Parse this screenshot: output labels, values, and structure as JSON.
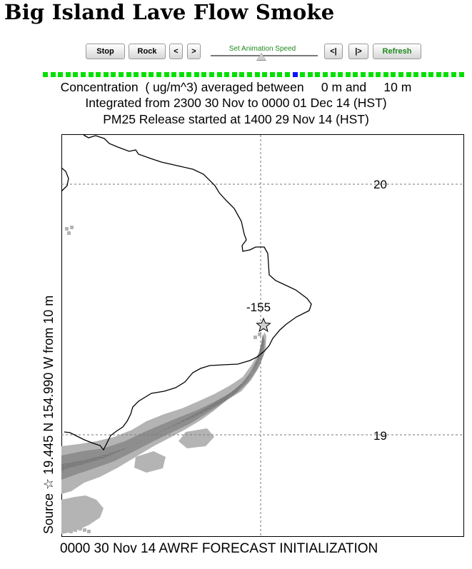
{
  "title": "Big Island Lave Flow Smoke",
  "controls": {
    "stop_label": "Stop",
    "rock_label": "Rock",
    "prev_label": "<",
    "next_label": ">",
    "speed_label": "Set Animation Speed",
    "first_label": "<|",
    "last_label": "|>",
    "refresh_label": "Refresh",
    "speed_level": 0.47
  },
  "frames": {
    "count": 56,
    "current_index": 33
  },
  "header": {
    "line1": "Concentration  ( ug/m^3) averaged between     0 m and     10 m",
    "line2": "Integrated from 2300 30 Nov to 0000 01 Dec 14 (HST)",
    "line3": "PM25 Release started at 1400 29 Nov 14 (HST)"
  },
  "map": {
    "y_axis_label": "Source ☆ 19.445 N 154.990 W      from  10 m",
    "lat_labels": [
      "20",
      "19"
    ],
    "lon_label": "-155",
    "source_marker": "source-star",
    "colors": {
      "plume_light": "#b4b4b4",
      "plume_mid": "#8e8e8e",
      "plume_dark": "#6a6a6a",
      "coast": "#000000",
      "grid": "#777777"
    }
  },
  "footer": "0000 30 Nov 14 AWRF FORECAST INITIALIZATION"
}
